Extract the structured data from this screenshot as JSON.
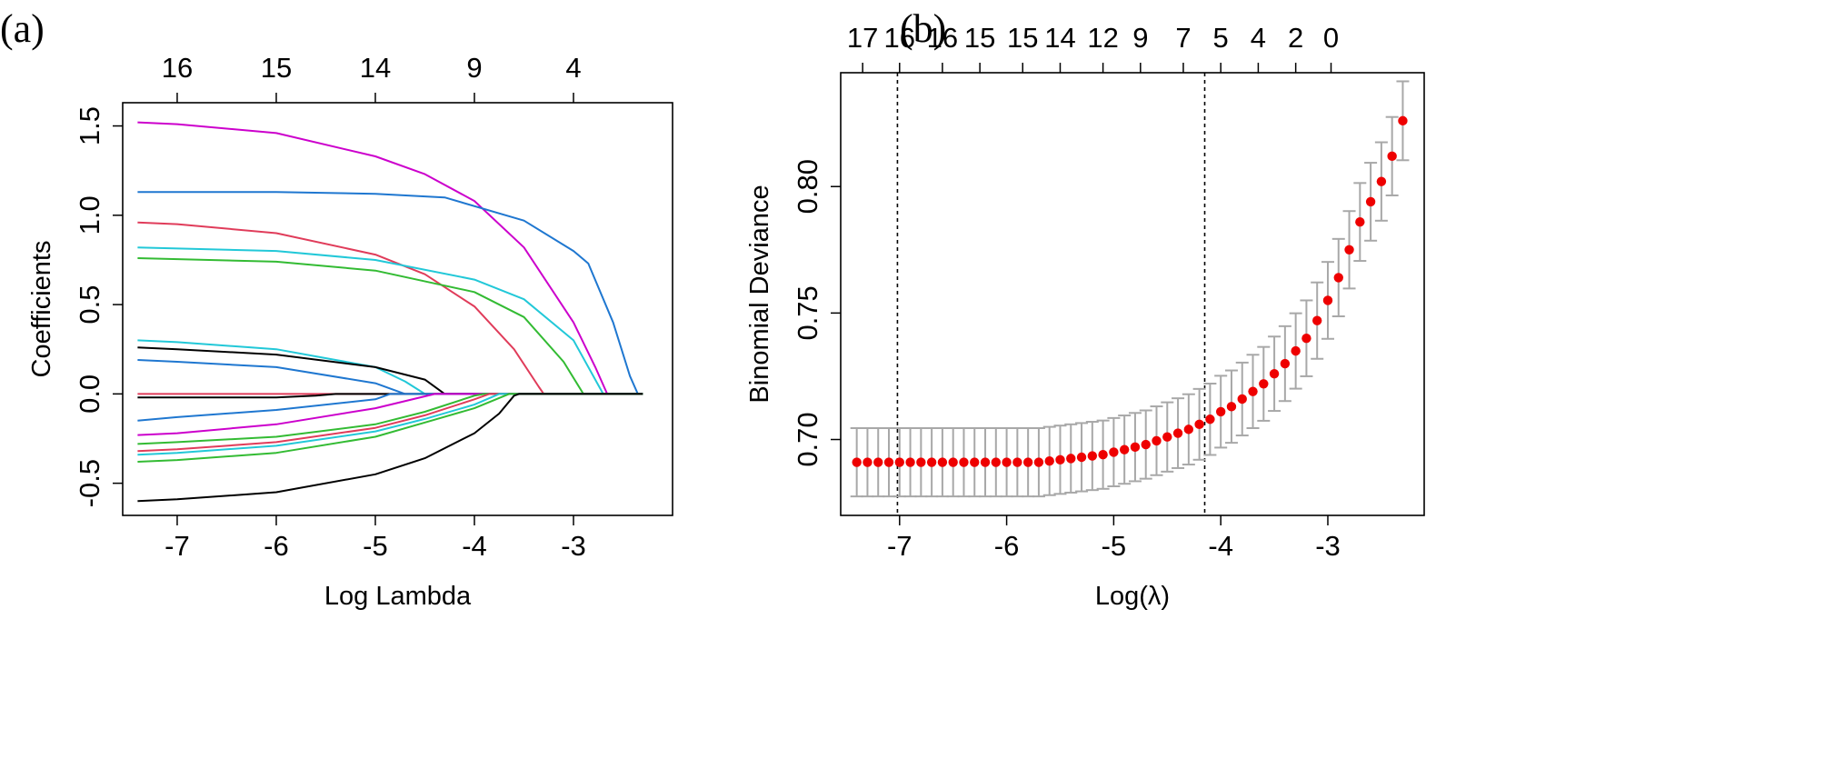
{
  "panels": {
    "a_label": "(a)",
    "b_label": "(b)"
  },
  "chart_data": [
    {
      "type": "line",
      "panel": "(a)",
      "title": "",
      "xlabel": "Log Lambda",
      "ylabel": "Coefficients",
      "xlim": [
        -7.55,
        -2.0
      ],
      "ylim": [
        -0.68,
        1.63
      ],
      "x_ticks": [
        "-7",
        "-6",
        "-5",
        "-4",
        "-3"
      ],
      "x_tick_values": [
        -7,
        -6,
        -5,
        -4,
        -3
      ],
      "y_ticks": [
        "-0.5",
        "0.0",
        "0.5",
        "1.0",
        "1.5"
      ],
      "y_tick_values": [
        -0.5,
        0.0,
        0.5,
        1.0,
        1.5
      ],
      "top_ticks": [
        "16",
        "15",
        "14",
        "9",
        "4"
      ],
      "top_tick_positions": [
        -7.0,
        -6.0,
        -5.0,
        -4.0,
        -3.0
      ],
      "series": [
        {
          "color": "#cc00cc",
          "points": [
            [
              -7.4,
              1.52
            ],
            [
              -7.0,
              1.51
            ],
            [
              -6.0,
              1.46
            ],
            [
              -5.0,
              1.33
            ],
            [
              -4.5,
              1.23
            ],
            [
              -4.0,
              1.08
            ],
            [
              -3.5,
              0.82
            ],
            [
              -3.0,
              0.4
            ],
            [
              -2.78,
              0.15
            ],
            [
              -2.66,
              0.0
            ],
            [
              -2.3,
              0.0
            ]
          ]
        },
        {
          "color": "#1f77d0",
          "points": [
            [
              -7.4,
              1.13
            ],
            [
              -6.0,
              1.13
            ],
            [
              -5.0,
              1.12
            ],
            [
              -4.3,
              1.1
            ],
            [
              -3.5,
              0.97
            ],
            [
              -3.0,
              0.8
            ],
            [
              -2.85,
              0.73
            ],
            [
              -2.6,
              0.4
            ],
            [
              -2.43,
              0.1
            ],
            [
              -2.35,
              0.0
            ],
            [
              -2.3,
              0.0
            ]
          ]
        },
        {
          "color": "#e03c5a",
          "points": [
            [
              -7.4,
              0.96
            ],
            [
              -7.0,
              0.95
            ],
            [
              -6.0,
              0.9
            ],
            [
              -5.0,
              0.78
            ],
            [
              -4.5,
              0.67
            ],
            [
              -4.0,
              0.49
            ],
            [
              -3.6,
              0.25
            ],
            [
              -3.35,
              0.04
            ],
            [
              -3.3,
              0.0
            ],
            [
              -2.3,
              0.0
            ]
          ]
        },
        {
          "color": "#22c8d8",
          "points": [
            [
              -7.4,
              0.82
            ],
            [
              -6.0,
              0.8
            ],
            [
              -5.0,
              0.75
            ],
            [
              -4.0,
              0.64
            ],
            [
              -3.5,
              0.53
            ],
            [
              -3.0,
              0.3
            ],
            [
              -2.75,
              0.05
            ],
            [
              -2.7,
              0.0
            ],
            [
              -2.3,
              0.0
            ]
          ]
        },
        {
          "color": "#33bb33",
          "points": [
            [
              -7.4,
              0.76
            ],
            [
              -6.0,
              0.74
            ],
            [
              -5.0,
              0.69
            ],
            [
              -4.0,
              0.57
            ],
            [
              -3.5,
              0.43
            ],
            [
              -3.1,
              0.18
            ],
            [
              -2.9,
              0.0
            ],
            [
              -2.3,
              0.0
            ]
          ]
        },
        {
          "color": "#22c8d8",
          "points": [
            [
              -7.4,
              0.3
            ],
            [
              -7.0,
              0.29
            ],
            [
              -6.0,
              0.25
            ],
            [
              -5.0,
              0.15
            ],
            [
              -4.7,
              0.07
            ],
            [
              -4.5,
              0.0
            ],
            [
              -2.3,
              0.0
            ]
          ]
        },
        {
          "color": "#000000",
          "points": [
            [
              -7.4,
              0.26
            ],
            [
              -7.0,
              0.25
            ],
            [
              -6.0,
              0.22
            ],
            [
              -5.0,
              0.15
            ],
            [
              -4.5,
              0.08
            ],
            [
              -4.3,
              0.0
            ],
            [
              -2.3,
              0.0
            ]
          ]
        },
        {
          "color": "#1f77d0",
          "points": [
            [
              -7.4,
              0.19
            ],
            [
              -7.0,
              0.18
            ],
            [
              -6.0,
              0.15
            ],
            [
              -5.0,
              0.06
            ],
            [
              -4.7,
              0.0
            ],
            [
              -2.3,
              0.0
            ]
          ]
        },
        {
          "color": "#e03c5a",
          "points": [
            [
              -7.4,
              0.0
            ],
            [
              -6.5,
              0.0
            ],
            [
              -2.3,
              0.0
            ]
          ]
        },
        {
          "color": "#000000",
          "points": [
            [
              -7.4,
              -0.02
            ],
            [
              -6.5,
              -0.02
            ],
            [
              -6.0,
              -0.02
            ],
            [
              -5.6,
              -0.01
            ],
            [
              -5.4,
              0.0
            ],
            [
              -2.3,
              0.0
            ]
          ]
        },
        {
          "color": "#1f77d0",
          "points": [
            [
              -7.4,
              -0.15
            ],
            [
              -7.0,
              -0.13
            ],
            [
              -6.0,
              -0.09
            ],
            [
              -5.0,
              -0.03
            ],
            [
              -4.85,
              0.0
            ],
            [
              -2.3,
              0.0
            ]
          ]
        },
        {
          "color": "#cc00cc",
          "points": [
            [
              -7.4,
              -0.23
            ],
            [
              -7.0,
              -0.22
            ],
            [
              -6.0,
              -0.17
            ],
            [
              -5.0,
              -0.08
            ],
            [
              -4.4,
              0.0
            ],
            [
              -2.3,
              0.0
            ]
          ]
        },
        {
          "color": "#33bb33",
          "points": [
            [
              -7.4,
              -0.28
            ],
            [
              -7.0,
              -0.27
            ],
            [
              -6.0,
              -0.24
            ],
            [
              -5.0,
              -0.17
            ],
            [
              -4.5,
              -0.1
            ],
            [
              -4.0,
              -0.01
            ],
            [
              -3.9,
              0.0
            ],
            [
              -2.3,
              0.0
            ]
          ]
        },
        {
          "color": "#e03c5a",
          "points": [
            [
              -7.4,
              -0.32
            ],
            [
              -7.0,
              -0.31
            ],
            [
              -6.0,
              -0.27
            ],
            [
              -5.0,
              -0.19
            ],
            [
              -4.5,
              -0.12
            ],
            [
              -4.0,
              -0.03
            ],
            [
              -3.85,
              0.0
            ],
            [
              -2.3,
              0.0
            ]
          ]
        },
        {
          "color": "#22c8d8",
          "points": [
            [
              -7.4,
              -0.34
            ],
            [
              -7.0,
              -0.33
            ],
            [
              -6.0,
              -0.29
            ],
            [
              -5.0,
              -0.21
            ],
            [
              -4.5,
              -0.14
            ],
            [
              -4.0,
              -0.06
            ],
            [
              -3.75,
              0.0
            ],
            [
              -2.3,
              0.0
            ]
          ]
        },
        {
          "color": "#33bb33",
          "points": [
            [
              -7.4,
              -0.38
            ],
            [
              -7.0,
              -0.37
            ],
            [
              -6.0,
              -0.33
            ],
            [
              -5.0,
              -0.24
            ],
            [
              -4.5,
              -0.16
            ],
            [
              -4.0,
              -0.08
            ],
            [
              -3.65,
              0.0
            ],
            [
              -2.3,
              0.0
            ]
          ]
        },
        {
          "color": "#000000",
          "points": [
            [
              -7.4,
              -0.6
            ],
            [
              -7.0,
              -0.59
            ],
            [
              -6.0,
              -0.55
            ],
            [
              -5.0,
              -0.45
            ],
            [
              -4.5,
              -0.36
            ],
            [
              -4.0,
              -0.22
            ],
            [
              -3.75,
              -0.11
            ],
            [
              -3.6,
              -0.01
            ],
            [
              -3.55,
              0.0
            ],
            [
              -2.3,
              0.0
            ]
          ]
        }
      ]
    },
    {
      "type": "scatter",
      "panel": "(b)",
      "title": "",
      "xlabel": "Log(λ)",
      "ylabel": "Binomial Deviance",
      "xlim": [
        -7.55,
        -2.1
      ],
      "ylim": [
        0.67,
        0.845
      ],
      "x_ticks": [
        "-7",
        "-6",
        "-5",
        "-4",
        "-3"
      ],
      "x_tick_values": [
        -7,
        -6,
        -5,
        -4,
        -3
      ],
      "y_ticks": [
        "0.70",
        "0.75",
        "0.80"
      ],
      "y_tick_values": [
        0.7,
        0.75,
        0.8
      ],
      "top_ticks": [
        "17",
        "16",
        "16",
        "15",
        "15",
        "14",
        "12",
        "9",
        "7",
        "5",
        "4",
        "2",
        "0"
      ],
      "top_tick_positions": [
        -7.345,
        -7.0,
        -6.6,
        -6.25,
        -5.85,
        -5.5,
        -5.1,
        -4.75,
        -4.35,
        -4.0,
        -3.65,
        -3.3,
        -2.97
      ],
      "reference_lines_x": [
        -7.02,
        -4.15
      ],
      "point_color": "#ee0000",
      "errorbar_color": "#a8a8a8",
      "x": [
        -7.4,
        -7.3,
        -7.2,
        -7.1,
        -7.0,
        -6.9,
        -6.8,
        -6.7,
        -6.6,
        -6.5,
        -6.4,
        -6.3,
        -6.2,
        -6.1,
        -6.0,
        -5.9,
        -5.8,
        -5.7,
        -5.6,
        -5.5,
        -5.4,
        -5.3,
        -5.2,
        -5.1,
        -5.0,
        -4.9,
        -4.8,
        -4.7,
        -4.6,
        -4.5,
        -4.4,
        -4.3,
        -4.2,
        -4.1,
        -4.0,
        -3.9,
        -3.8,
        -3.7,
        -3.6,
        -3.5,
        -3.4,
        -3.3,
        -3.2,
        -3.1,
        -3.0,
        -2.9,
        -2.8,
        -2.7,
        -2.6,
        -2.5,
        -2.4,
        -2.3
      ],
      "y": [
        0.691,
        0.691,
        0.691,
        0.691,
        0.691,
        0.691,
        0.691,
        0.691,
        0.691,
        0.691,
        0.691,
        0.691,
        0.691,
        0.691,
        0.691,
        0.691,
        0.691,
        0.691,
        0.6915,
        0.692,
        0.6925,
        0.693,
        0.6935,
        0.694,
        0.695,
        0.696,
        0.697,
        0.698,
        0.6995,
        0.701,
        0.7025,
        0.704,
        0.706,
        0.708,
        0.711,
        0.713,
        0.716,
        0.719,
        0.722,
        0.726,
        0.73,
        0.735,
        0.74,
        0.747,
        0.755,
        0.764,
        0.775,
        0.786,
        0.794,
        0.802,
        0.812,
        0.826
      ],
      "se": [
        0.0135,
        0.0135,
        0.0135,
        0.0135,
        0.0135,
        0.0135,
        0.0135,
        0.0135,
        0.0135,
        0.0135,
        0.0135,
        0.0135,
        0.0135,
        0.0135,
        0.0135,
        0.0135,
        0.0135,
        0.0135,
        0.0135,
        0.0135,
        0.0135,
        0.0135,
        0.0135,
        0.0135,
        0.0135,
        0.0135,
        0.0135,
        0.0135,
        0.0136,
        0.0137,
        0.0138,
        0.0139,
        0.014,
        0.0141,
        0.0142,
        0.0143,
        0.0144,
        0.0145,
        0.0146,
        0.0147,
        0.0148,
        0.0149,
        0.015,
        0.0151,
        0.0152,
        0.0153,
        0.0153,
        0.0154,
        0.0154,
        0.0155,
        0.0155,
        0.0156
      ]
    }
  ]
}
